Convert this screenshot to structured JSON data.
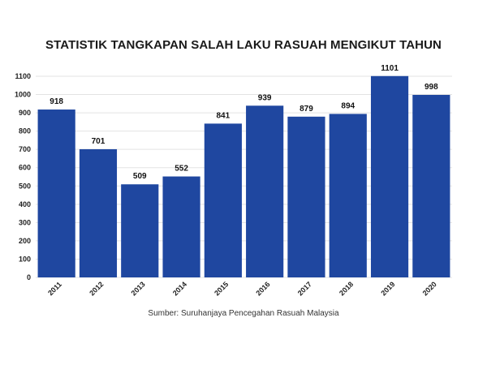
{
  "chart_data": {
    "type": "bar",
    "title": "STATISTIK TANGKAPAN SALAH LAKU RASUAH MENGIKUT TAHUN",
    "categories": [
      "2011",
      "2012",
      "2013",
      "2014",
      "2015",
      "2016",
      "2017",
      "2018",
      "2019",
      "2020"
    ],
    "values": [
      918,
      701,
      509,
      552,
      841,
      939,
      879,
      894,
      1101,
      998
    ],
    "yticks": [
      "0",
      "100",
      "200",
      "300",
      "400",
      "500",
      "600",
      "700",
      "800",
      "900",
      "1000",
      "1100"
    ],
    "ylim": [
      0,
      1100
    ],
    "bar_color": "#1f47a0",
    "grid": true,
    "legend": "none",
    "source": "Sumber: Suruhanjaya Pencegahan Rasuah Malaysia"
  }
}
